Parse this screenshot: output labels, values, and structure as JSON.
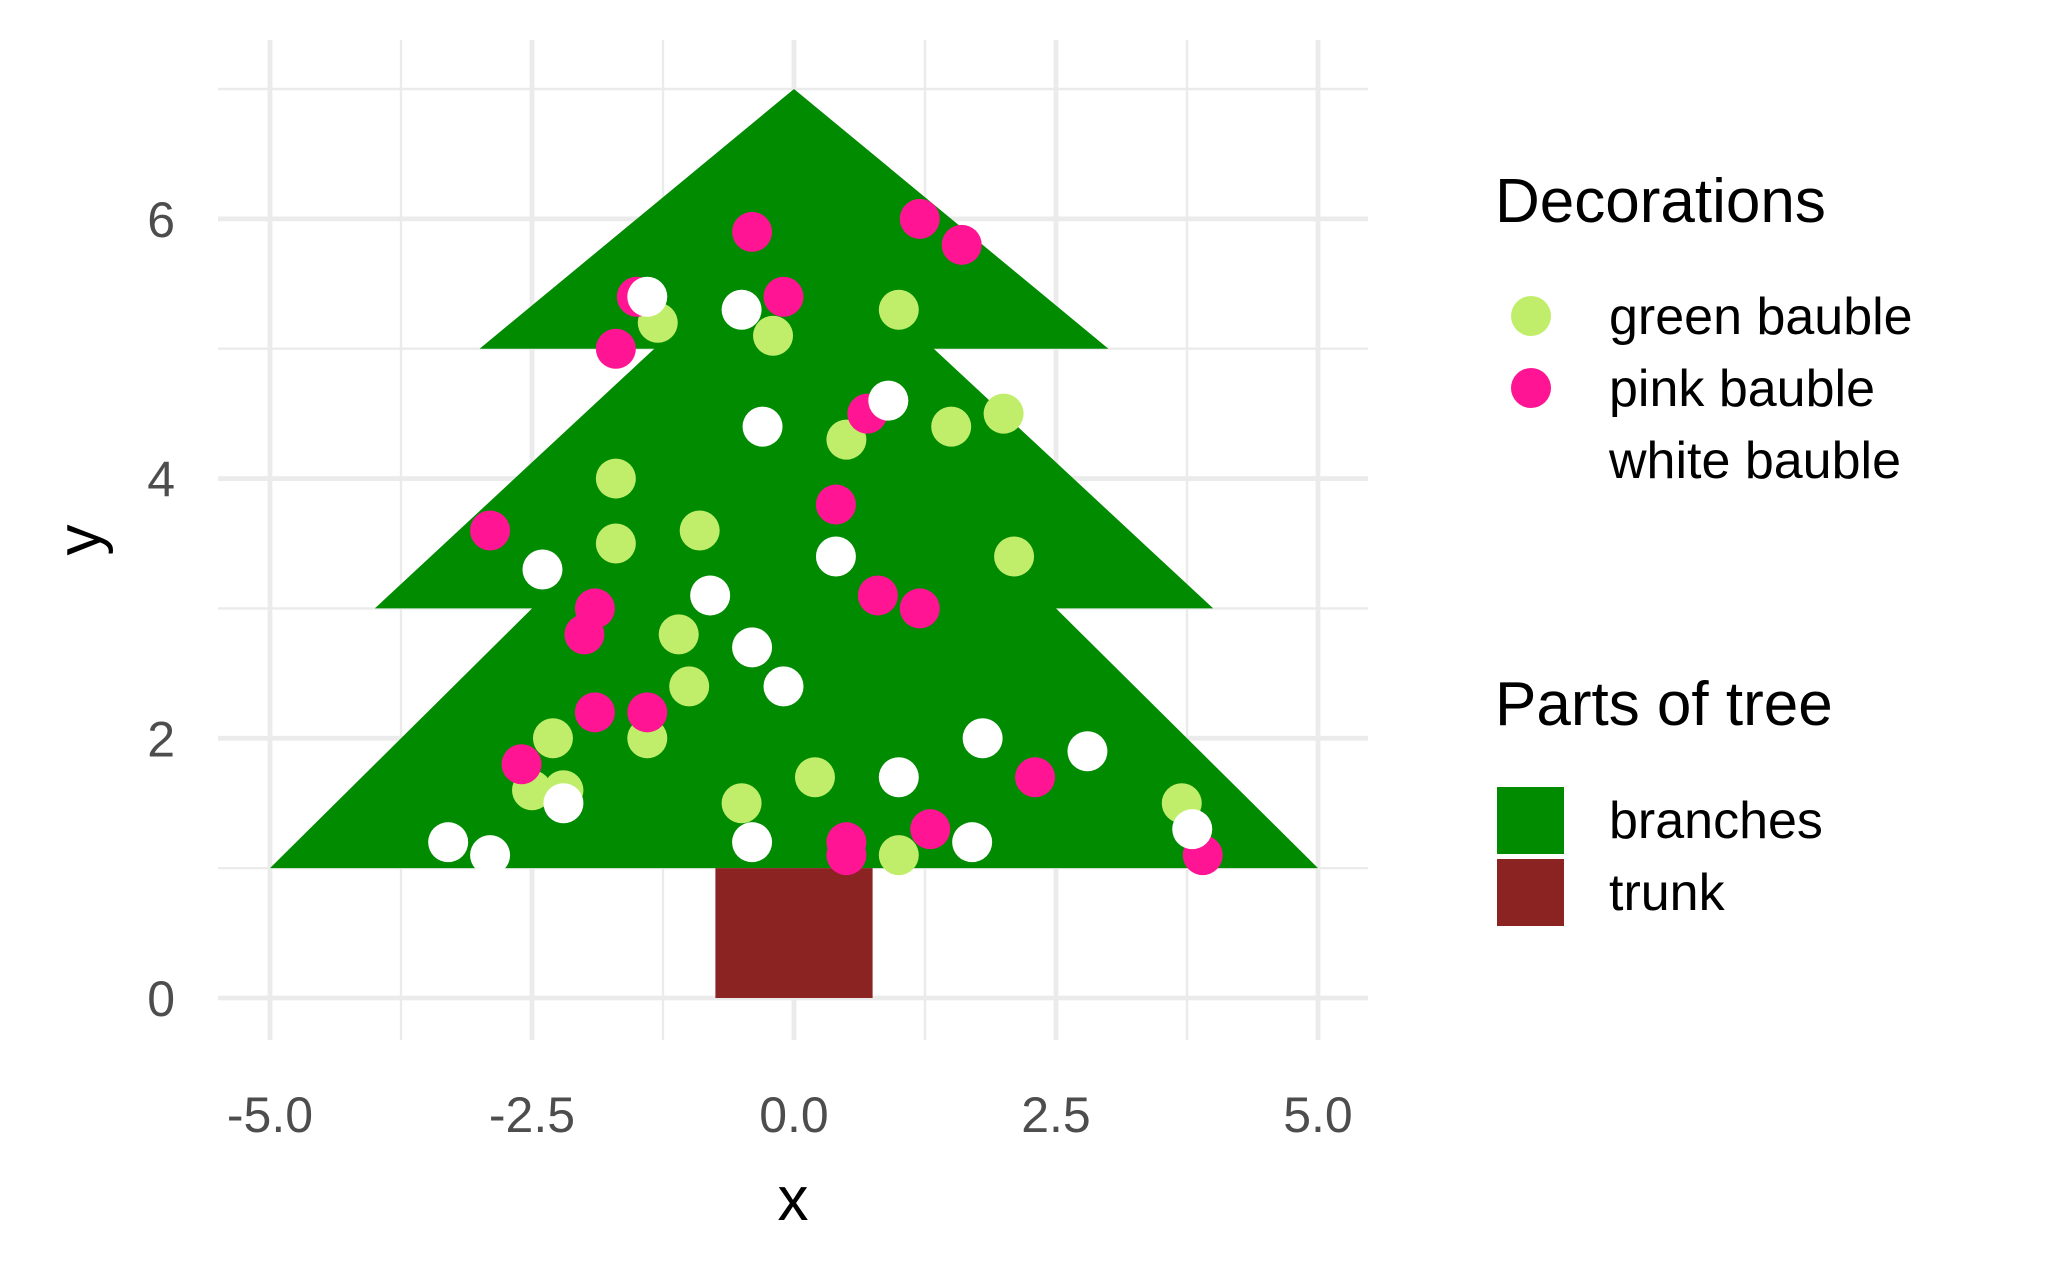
{
  "chart_data": {
    "type": "scatter",
    "title": "",
    "xlabel": "x",
    "ylabel": "y",
    "xlim": [
      -5.0,
      5.0
    ],
    "ylim": [
      0,
      7
    ],
    "x_ticks": [
      -5.0,
      -2.5,
      0.0,
      2.5,
      5.0
    ],
    "x_tick_labels": [
      "-5.0",
      "-2.5",
      "0.0",
      "2.5",
      "5.0"
    ],
    "y_ticks": [
      0,
      2,
      4,
      6
    ],
    "y_tick_labels": [
      "0",
      "2",
      "4",
      "6"
    ],
    "grid": true,
    "legend_placement": "right",
    "tree_parts": [
      {
        "name": "branches",
        "color": "#008B00",
        "polygons": [
          [
            [
              -5,
              1
            ],
            [
              5,
              1
            ],
            [
              0,
              5
            ]
          ],
          [
            [
              -4,
              3
            ],
            [
              4,
              3
            ],
            [
              0,
              6
            ]
          ],
          [
            [
              -3,
              5
            ],
            [
              3,
              5
            ],
            [
              0,
              7
            ]
          ]
        ]
      },
      {
        "name": "trunk",
        "color": "#8B2323",
        "polygons": [
          [
            [
              -0.75,
              0
            ],
            [
              0.75,
              0
            ],
            [
              0.75,
              1
            ],
            [
              -0.75,
              1
            ]
          ]
        ]
      }
    ],
    "series": [
      {
        "name": "green bauble",
        "color": "#C0EE6A",
        "points": [
          [
            -1.3,
            5.2
          ],
          [
            1.0,
            5.3
          ],
          [
            -0.2,
            5.1
          ],
          [
            0.5,
            4.3
          ],
          [
            1.5,
            4.4
          ],
          [
            2.0,
            4.5
          ],
          [
            -1.7,
            4.0
          ],
          [
            -1.7,
            3.5
          ],
          [
            -0.9,
            3.6
          ],
          [
            2.1,
            3.4
          ],
          [
            -1.1,
            2.8
          ],
          [
            -1.0,
            2.4
          ],
          [
            -2.3,
            2.0
          ],
          [
            -1.4,
            2.0
          ],
          [
            -2.5,
            1.6
          ],
          [
            -2.2,
            1.6
          ],
          [
            0.2,
            1.7
          ],
          [
            -0.5,
            1.5
          ],
          [
            1.0,
            1.1
          ],
          [
            3.7,
            1.5
          ]
        ]
      },
      {
        "name": "pink bauble",
        "color": "#FF1493",
        "points": [
          [
            -0.4,
            5.9
          ],
          [
            1.2,
            6.0
          ],
          [
            1.6,
            5.8
          ],
          [
            -1.5,
            5.4
          ],
          [
            -0.1,
            5.4
          ],
          [
            -1.7,
            5.0
          ],
          [
            0.7,
            4.5
          ],
          [
            0.4,
            3.8
          ],
          [
            -2.9,
            3.6
          ],
          [
            0.8,
            3.1
          ],
          [
            1.2,
            3.0
          ],
          [
            -1.9,
            3.0
          ],
          [
            -2.0,
            2.8
          ],
          [
            -1.9,
            2.2
          ],
          [
            -1.4,
            2.2
          ],
          [
            -2.6,
            1.8
          ],
          [
            2.3,
            1.7
          ],
          [
            1.3,
            1.3
          ],
          [
            0.5,
            1.2
          ],
          [
            0.5,
            1.1
          ],
          [
            3.9,
            1.1
          ]
        ]
      },
      {
        "name": "white bauble",
        "color": "#FFFFFF",
        "points": [
          [
            -1.4,
            5.4
          ],
          [
            -0.5,
            5.3
          ],
          [
            0.9,
            4.6
          ],
          [
            -0.3,
            4.4
          ],
          [
            0.4,
            3.4
          ],
          [
            -2.4,
            3.3
          ],
          [
            -0.8,
            3.1
          ],
          [
            -0.4,
            2.7
          ],
          [
            -0.1,
            2.4
          ],
          [
            1.8,
            2.0
          ],
          [
            2.8,
            1.9
          ],
          [
            1.0,
            1.7
          ],
          [
            -2.2,
            1.5
          ],
          [
            -3.3,
            1.2
          ],
          [
            -2.9,
            1.1
          ],
          [
            -0.4,
            1.2
          ],
          [
            1.7,
            1.2
          ],
          [
            3.8,
            1.3
          ]
        ]
      }
    ]
  },
  "legend": {
    "decorations_title": "Decorations",
    "decorations_items": [
      "green bauble",
      "pink bauble",
      "white bauble"
    ],
    "parts_title": "Parts of tree",
    "parts_items": [
      "branches",
      "trunk"
    ]
  }
}
